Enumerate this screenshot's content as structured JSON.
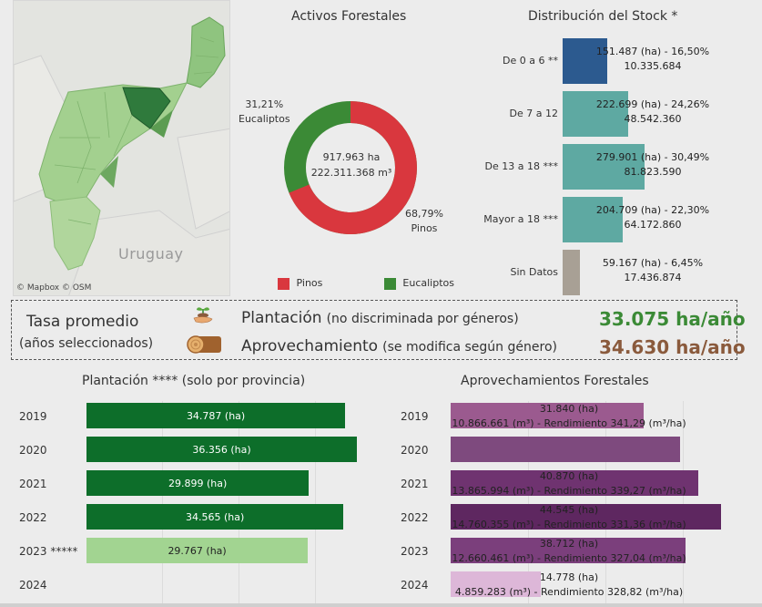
{
  "map": {
    "attribution": "© Mapbox  © OSM",
    "label": "Uruguay"
  },
  "donut": {
    "title": "Activos Forestales",
    "center_line1": "917.963 ha",
    "center_line2": "222.311.368 m³",
    "eucaliptos_pct": "31,21%",
    "eucaliptos_name": "Eucaliptos",
    "pinos_pct": "68,79%",
    "pinos_name": "Pinos",
    "pinos_share": 0.6879,
    "eucaliptos_share": 0.3121,
    "pinos_color": "#d9373e",
    "eucaliptos_color": "#3b8a36",
    "legend": [
      {
        "label": "Pinos",
        "color": "#d9373e"
      },
      {
        "label": "Eucaliptos",
        "color": "#3b8a36"
      }
    ]
  },
  "stock": {
    "title": "Distribución del Stock *",
    "rows": [
      {
        "label": "De 0 a 6 **",
        "line1": "151.487 (ha) - 16,50%",
        "line2": "10.335.684",
        "pct": 16.5,
        "color": "#2c5a8f"
      },
      {
        "label": "De 7 a 12",
        "line1": "222.699 (ha) - 24,26%",
        "line2": "48.542.360",
        "pct": 24.26,
        "color": "#5ea9a2"
      },
      {
        "label": "De 13 a 18 ***",
        "line1": "279.901 (ha) - 30,49%",
        "line2": "81.823.590",
        "pct": 30.49,
        "color": "#5ea9a2"
      },
      {
        "label": "Mayor a 18 ***",
        "line1": "204.709 (ha) - 22,30%",
        "line2": "64.172.860",
        "pct": 22.3,
        "color": "#5ea9a2"
      },
      {
        "label": "Sin Datos",
        "line1": "59.167 (ha) - 6,45%",
        "line2": "17.436.874",
        "pct": 6.45,
        "color": "#a8a095"
      }
    ]
  },
  "banner": {
    "tasa_line1": "Tasa promedio",
    "tasa_line2": "(años seleccionados)",
    "plantacion_bold": "Plantación",
    "plantacion_note": "(no discriminada por géneros)",
    "plantacion_value": "33.075 ha/año",
    "plantacion_color": "#3b8a36",
    "aprov_bold": "Aprovechamiento",
    "aprov_note": "(se modifica según género)",
    "aprov_value": "34.630 ha/año",
    "aprov_color": "#8a5a3c",
    "sprout_icon": "sprout-in-hand-icon",
    "log_icon": "wood-log-icon"
  },
  "plantacion": {
    "title": "Plantación **** (solo por provincia)",
    "rows": [
      {
        "year": "2019",
        "label": "34.787 (ha)",
        "value": 34787,
        "color": "#0d6e2a",
        "text_color": "#ffffff"
      },
      {
        "year": "2020",
        "label": "36.356 (ha)",
        "value": 36356,
        "color": "#0d6e2a",
        "text_color": "#ffffff"
      },
      {
        "year": "2021",
        "label": "29.899 (ha)",
        "value": 29899,
        "color": "#0d6e2a",
        "text_color": "#ffffff"
      },
      {
        "year": "2022",
        "label": "34.565 (ha)",
        "value": 34565,
        "color": "#0d6e2a",
        "text_color": "#ffffff"
      },
      {
        "year": "2023 *****",
        "label": "29.767 (ha)",
        "value": 29767,
        "color": "#a2d491",
        "text_color": "#222222"
      },
      {
        "year": "2024",
        "label": "",
        "value": 0,
        "color": "#a2d491",
        "text_color": "#222222"
      }
    ]
  },
  "aprov": {
    "title": "Aprovechamientos Forestales",
    "rows": [
      {
        "year": "2019",
        "line1": "31.840 (ha)",
        "line2": "10.866.661 (m³) - Rendimiento 341,29 (m³/ha)",
        "value": 31840,
        "color": "#9b5a8f"
      },
      {
        "year": "2020",
        "line1": "",
        "line2": "",
        "value": 37800,
        "color": "#7e4a7e"
      },
      {
        "year": "2021",
        "line1": "40.870 (ha)",
        "line2": "13.865.994 (m³) - Rendimiento 339,27 (m³/ha)",
        "value": 40870,
        "color": "#6f3370"
      },
      {
        "year": "2022",
        "line1": "44.545 (ha)",
        "line2": "14.760.355 (m³) - Rendimiento 331,36 (m³/ha)",
        "value": 44545,
        "color": "#5e2760"
      },
      {
        "year": "2023",
        "line1": "38.712 (ha)",
        "line2": "12.660.461 (m³) - Rendimiento 327,04 (m³/ha)",
        "value": 38712,
        "color": "#7b3f7c"
      },
      {
        "year": "2024",
        "line1": "14.778 (ha)",
        "line2": "4.859.283 (m³) - Rendimiento 328,82 (m³/ha)",
        "value": 14778,
        "color": "#ddb7d8"
      }
    ]
  }
}
